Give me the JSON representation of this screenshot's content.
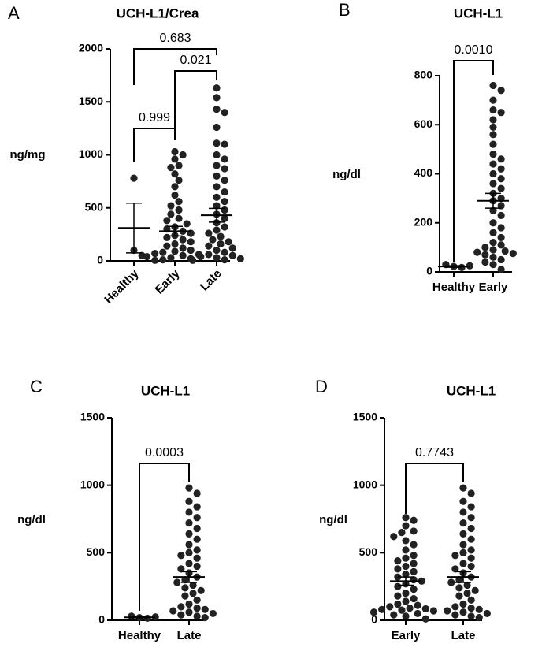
{
  "chart_data": [
    {
      "type": "dot",
      "panel": "A",
      "title": "UCH-L1/Crea",
      "ylabel": "ng/mg",
      "categories": [
        "Healthy",
        "Early",
        "Late"
      ],
      "groups": [
        [
          780,
          100,
          50
        ],
        [
          1030,
          1000,
          960,
          900,
          880,
          820,
          760,
          700,
          620,
          560,
          520,
          480,
          440,
          400,
          380,
          350,
          320,
          300,
          280,
          260,
          240,
          220,
          200,
          180,
          160,
          140,
          120,
          100,
          90,
          80,
          70,
          60,
          50,
          40,
          30,
          20,
          10,
          5
        ],
        [
          1630,
          1540,
          1430,
          1400,
          1260,
          1110,
          1100,
          1000,
          960,
          900,
          870,
          800,
          760,
          700,
          650,
          600,
          560,
          520,
          480,
          440,
          400,
          360,
          320,
          290,
          260,
          230,
          200,
          180,
          160,
          140,
          120,
          100,
          80,
          60,
          50,
          40,
          30,
          20,
          10,
          5
        ]
      ],
      "means": [
        310,
        280,
        430
      ],
      "errors": [
        235,
        45,
        65
      ],
      "ylim": [
        0,
        2000
      ],
      "yticks": [
        0,
        500,
        1000,
        1500,
        2000
      ],
      "comparisons": [
        {
          "groups": [
            0,
            1
          ],
          "label": "0.999"
        },
        {
          "groups": [
            1,
            2
          ],
          "label": "0.021"
        },
        {
          "groups": [
            0,
            2
          ],
          "label": "0.683"
        }
      ]
    },
    {
      "type": "dot",
      "panel": "B",
      "title": "UCH-L1",
      "ylabel": "ng/dl",
      "categories": [
        "Healthy",
        "Early"
      ],
      "groups": [
        [
          22,
          18,
          30,
          25
        ],
        [
          760,
          740,
          700,
          660,
          650,
          620,
          590,
          560,
          520,
          480,
          460,
          440,
          420,
          400,
          380,
          360,
          340,
          320,
          300,
          290,
          270,
          250,
          230,
          200,
          180,
          160,
          140,
          120,
          110,
          100,
          90,
          85,
          80,
          75,
          70,
          60,
          50,
          40,
          30,
          10
        ]
      ],
      "means": [
        22,
        290
      ],
      "errors": [
        3,
        30
      ],
      "ylim": [
        0,
        800
      ],
      "yticks": [
        0,
        200,
        400,
        600,
        800
      ],
      "comparisons": [
        {
          "groups": [
            0,
            1
          ],
          "label": "0.0010"
        }
      ]
    },
    {
      "type": "dot",
      "panel": "C",
      "title": "UCH-L1",
      "ylabel": "ng/dl",
      "categories": [
        "Healthy",
        "Late"
      ],
      "groups": [
        [
          20,
          15,
          30,
          25
        ],
        [
          980,
          940,
          880,
          840,
          800,
          760,
          720,
          680,
          640,
          600,
          560,
          520,
          500,
          480,
          460,
          420,
          400,
          380,
          350,
          320,
          300,
          280,
          260,
          240,
          220,
          200,
          180,
          150,
          120,
          100,
          90,
          80,
          70,
          60,
          50,
          40,
          30,
          20
        ]
      ],
      "means": [
        22,
        320
      ],
      "errors": [
        4,
        40
      ],
      "ylim": [
        0,
        1500
      ],
      "yticks": [
        0,
        500,
        1000,
        1500
      ],
      "comparisons": [
        {
          "groups": [
            0,
            1
          ],
          "label": "0.0003"
        }
      ]
    },
    {
      "type": "dot",
      "panel": "D",
      "title": "UCH-L1",
      "ylabel": "ng/dl",
      "categories": [
        "Early",
        "Late"
      ],
      "groups": [
        [
          760,
          740,
          700,
          660,
          650,
          620,
          590,
          560,
          520,
          480,
          460,
          440,
          420,
          400,
          380,
          360,
          340,
          320,
          300,
          290,
          270,
          250,
          230,
          200,
          180,
          160,
          140,
          120,
          110,
          100,
          90,
          85,
          80,
          75,
          70,
          60,
          50,
          40,
          30,
          10
        ],
        [
          980,
          940,
          880,
          840,
          800,
          760,
          720,
          680,
          640,
          600,
          560,
          520,
          500,
          480,
          460,
          420,
          400,
          380,
          350,
          320,
          300,
          280,
          260,
          240,
          220,
          200,
          180,
          150,
          120,
          100,
          90,
          80,
          70,
          60,
          50,
          40,
          30,
          20
        ]
      ],
      "means": [
        290,
        320
      ],
      "errors": [
        30,
        40
      ],
      "ylim": [
        0,
        1500
      ],
      "yticks": [
        0,
        500,
        1000,
        1500
      ],
      "comparisons": [
        {
          "groups": [
            0,
            1
          ],
          "label": "0.7743"
        }
      ]
    }
  ]
}
